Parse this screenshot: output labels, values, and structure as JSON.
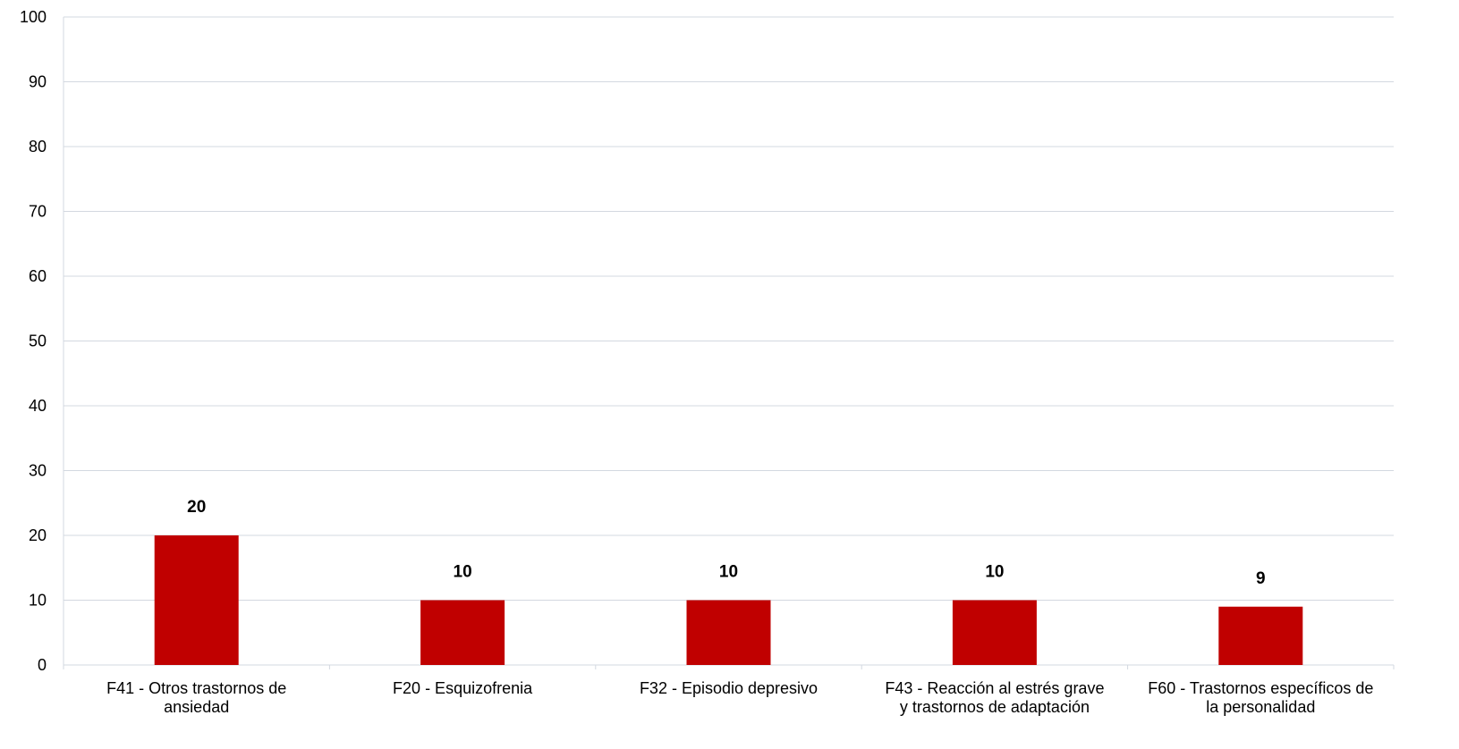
{
  "chart_data": {
    "type": "bar",
    "categories": [
      [
        "F41  - Otros trastornos de",
        "ansiedad"
      ],
      [
        "F20  - Esquizofrenia"
      ],
      [
        "F32  - Episodio depresivo"
      ],
      [
        "F43  - Reacción al estrés grave",
        "y trastornos de adaptación"
      ],
      [
        "F60  - Trastornos específicos de",
        "la personalidad"
      ]
    ],
    "values": [
      20,
      10,
      10,
      10,
      9
    ],
    "data_labels": [
      "20",
      "10",
      "10",
      "10",
      "9"
    ],
    "ylim": [
      0,
      100
    ],
    "yticks": [
      0,
      10,
      20,
      30,
      40,
      50,
      60,
      70,
      80,
      90,
      100
    ],
    "title": "",
    "xlabel": "",
    "ylabel": "",
    "grid": true,
    "legend": "none",
    "bar_color": "#C00000",
    "grid_color": "#D3D8E0"
  }
}
